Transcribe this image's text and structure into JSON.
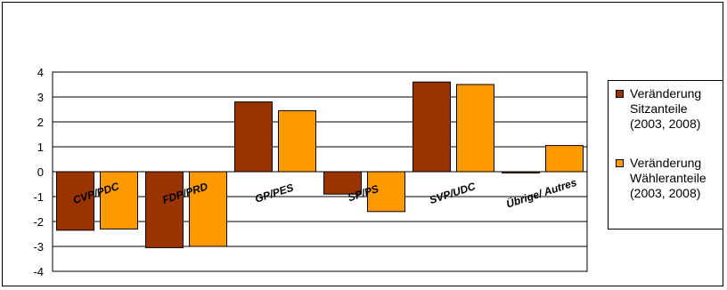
{
  "chart_data": {
    "type": "bar",
    "categories": [
      "CVP/PDC",
      "FDP/PRD",
      "GP/PES",
      "SP/PS",
      "SVP/UDC",
      "Übrige/ Autres"
    ],
    "series": [
      {
        "name": "Veränderung Sitzanteile (2003, 2008)",
        "color": "#993300",
        "values": [
          -2.35,
          -3.05,
          2.8,
          -0.9,
          3.6,
          -0.05
        ]
      },
      {
        "name": "Veränderung Wähleranteile (2003, 2008)",
        "color": "#FF9900",
        "values": [
          -2.3,
          -3.0,
          2.45,
          -1.6,
          3.5,
          1.05
        ]
      }
    ],
    "ylim": [
      -4,
      4
    ],
    "yticks": [
      4,
      3,
      2,
      1,
      0,
      -1,
      -2,
      -3,
      -4
    ],
    "grid": true,
    "legend_position": "right"
  },
  "legend": {
    "items": [
      {
        "label": "Veränderung\nSitzanteile\n(2003, 2008)",
        "color": "#993300"
      },
      {
        "label": "Veränderung\nWähleranteile\n(2003, 2008)",
        "color": "#FF9900"
      }
    ]
  }
}
